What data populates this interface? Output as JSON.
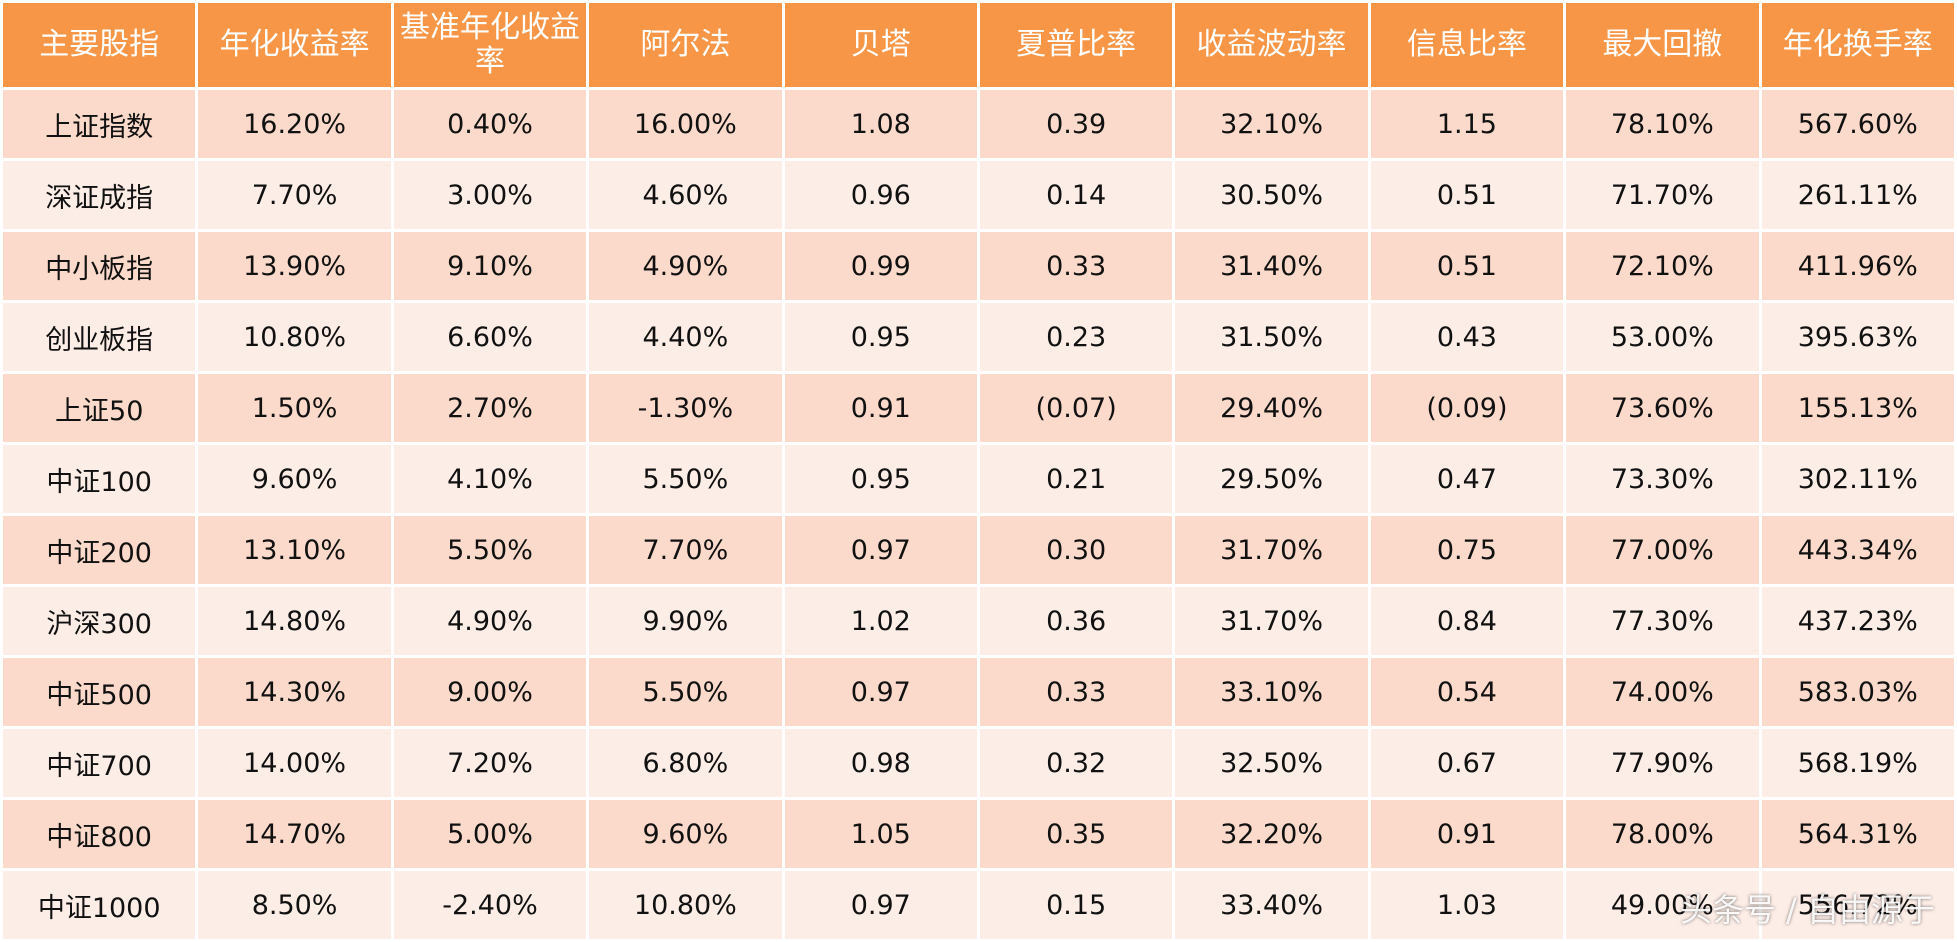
{
  "table": {
    "header": [
      "主要股指",
      "年化收益率",
      "基准年化收益率",
      "阿尔法",
      "贝塔",
      "夏普比率",
      "收益波动率",
      "信息比率",
      "最大回撤",
      "年化换手率"
    ],
    "rows": [
      [
        "上证指数",
        "16.20%",
        "0.40%",
        "16.00%",
        "1.08",
        "0.39",
        "32.10%",
        "1.15",
        "78.10%",
        "567.60%"
      ],
      [
        "深证成指",
        "7.70%",
        "3.00%",
        "4.60%",
        "0.96",
        "0.14",
        "30.50%",
        "0.51",
        "71.70%",
        "261.11%"
      ],
      [
        "中小板指",
        "13.90%",
        "9.10%",
        "4.90%",
        "0.99",
        "0.33",
        "31.40%",
        "0.51",
        "72.10%",
        "411.96%"
      ],
      [
        "创业板指",
        "10.80%",
        "6.60%",
        "4.40%",
        "0.95",
        "0.23",
        "31.50%",
        "0.43",
        "53.00%",
        "395.63%"
      ],
      [
        "上证50",
        "1.50%",
        "2.70%",
        "-1.30%",
        "0.91",
        "(0.07)",
        "29.40%",
        "(0.09)",
        "73.60%",
        "155.13%"
      ],
      [
        "中证100",
        "9.60%",
        "4.10%",
        "5.50%",
        "0.95",
        "0.21",
        "29.50%",
        "0.47",
        "73.30%",
        "302.11%"
      ],
      [
        "中证200",
        "13.10%",
        "5.50%",
        "7.70%",
        "0.97",
        "0.30",
        "31.70%",
        "0.75",
        "77.00%",
        "443.34%"
      ],
      [
        "沪深300",
        "14.80%",
        "4.90%",
        "9.90%",
        "1.02",
        "0.36",
        "31.70%",
        "0.84",
        "77.30%",
        "437.23%"
      ],
      [
        "中证500",
        "14.30%",
        "9.00%",
        "5.50%",
        "0.97",
        "0.33",
        "33.10%",
        "0.54",
        "74.00%",
        "583.03%"
      ],
      [
        "中证700",
        "14.00%",
        "7.20%",
        "6.80%",
        "0.98",
        "0.32",
        "32.50%",
        "0.67",
        "77.90%",
        "568.19%"
      ],
      [
        "中证800",
        "14.70%",
        "5.00%",
        "9.60%",
        "1.05",
        "0.35",
        "32.20%",
        "0.91",
        "78.00%",
        "564.31%"
      ],
      [
        "中证1000",
        "8.50%",
        "-2.40%",
        "10.80%",
        "0.97",
        "0.15",
        "33.40%",
        "1.03",
        "49.00%",
        "556.72%"
      ]
    ]
  },
  "watermark": "头条号 / 自由源于"
}
